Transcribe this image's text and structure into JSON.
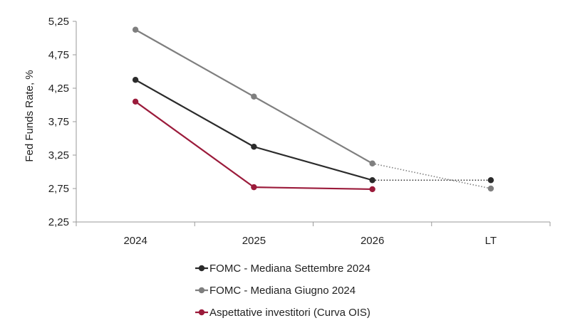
{
  "chart_data": {
    "type": "line",
    "categories": [
      "2024",
      "2025",
      "2026",
      "LT"
    ],
    "ylabel": "Fed Funds Rate, %",
    "ylim": [
      2.25,
      5.25
    ],
    "yticks": [
      "5,25",
      "4,75",
      "4,25",
      "3,75",
      "3,25",
      "2,75",
      "2,25"
    ],
    "ytick_values": [
      5.25,
      4.75,
      4.25,
      3.75,
      3.25,
      2.75,
      2.25
    ],
    "grid": false,
    "legend_position": "bottom",
    "series": [
      {
        "name": "FOMC - Mediana Settembre 2024",
        "color": "#2b2b2b",
        "values": [
          4.375,
          3.375,
          2.875,
          2.875
        ],
        "dotted_to_last": true
      },
      {
        "name": "FOMC - Mediana Giugno 2024",
        "color": "#7f7f7f",
        "values": [
          5.125,
          4.125,
          3.125,
          2.75
        ],
        "dotted_to_last": true
      },
      {
        "name": "Aspettative investitori (Curva OIS)",
        "color": "#9b1b3b",
        "values": [
          4.05,
          2.77,
          2.74,
          null
        ],
        "dotted_to_last": false
      }
    ]
  }
}
